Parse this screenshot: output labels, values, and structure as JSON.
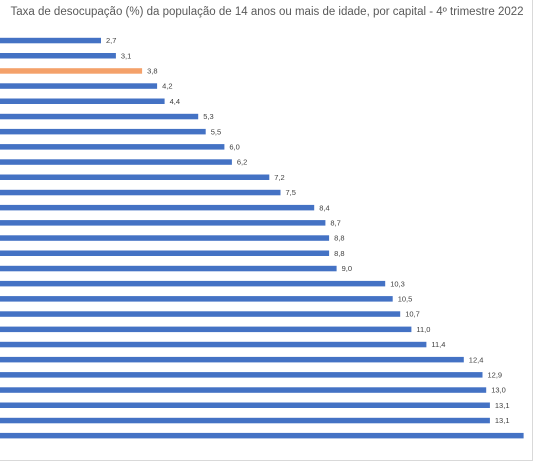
{
  "chart_data": {
    "type": "bar",
    "orientation": "horizontal",
    "title": "Taxa de desocupação (%) da população de 14 anos ou mais de idade, por capital - 4º trimestre 2022",
    "xlabel": "",
    "ylabel": "",
    "categories": [],
    "values": [
      2.7,
      3.1,
      3.8,
      4.2,
      4.4,
      5.3,
      5.5,
      6.0,
      6.2,
      7.2,
      7.5,
      8.4,
      8.7,
      8.8,
      8.8,
      9.0,
      10.3,
      10.5,
      10.7,
      11.0,
      11.4,
      12.4,
      12.9,
      13.0,
      13.1,
      13.1,
      14.0
    ],
    "labels": [
      "2,7",
      "3,1",
      "3,8",
      "4,2",
      "4,4",
      "5,3",
      "5,5",
      "6,0",
      "6,2",
      "7,2",
      "7,5",
      "8,4",
      "8,7",
      "8,8",
      "8,8",
      "9,0",
      "10,3",
      "10,5",
      "10,7",
      "11,0",
      "11,4",
      "12,4",
      "12,9",
      "13,0",
      "13,1",
      "13,1",
      ""
    ],
    "highlight_index": 2,
    "colors": {
      "bar": "#4472C4",
      "highlight": "#F4A16A"
    },
    "xlim": [
      0,
      13.5
    ],
    "grid": false,
    "legend": "none"
  }
}
